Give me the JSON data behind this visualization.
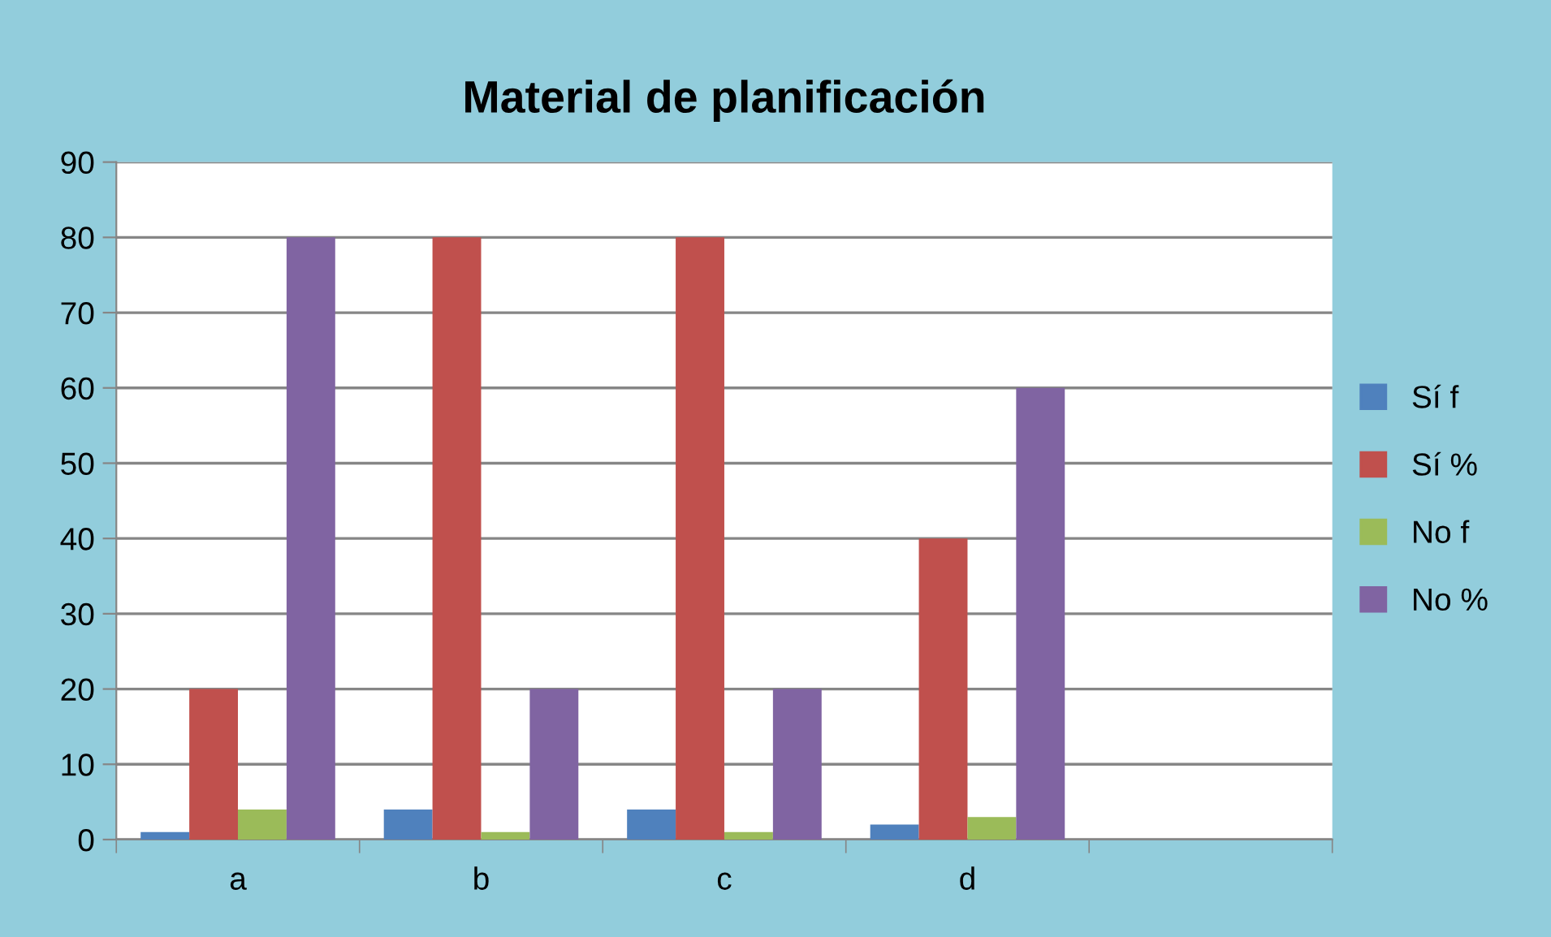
{
  "chart_data": {
    "type": "bar",
    "title": "Material de planificación",
    "categories": [
      "a",
      "b",
      "c",
      "d",
      null
    ],
    "series": [
      {
        "name": "Sí f",
        "color": "#4f81bd",
        "values": [
          1,
          4,
          4,
          2,
          null
        ]
      },
      {
        "name": "Sí %",
        "color": "#c0504d",
        "values": [
          20,
          80,
          80,
          40,
          null
        ]
      },
      {
        "name": "No f",
        "color": "#9bbb59",
        "values": [
          4,
          1,
          1,
          3,
          null
        ]
      },
      {
        "name": "No %",
        "color": "#8064a2",
        "values": [
          80,
          20,
          20,
          60,
          null
        ]
      }
    ],
    "ylim": [
      0,
      90
    ],
    "yticks": [
      0,
      10,
      20,
      30,
      40,
      50,
      60,
      70,
      80,
      90
    ],
    "grid": "y",
    "legend": "right"
  }
}
